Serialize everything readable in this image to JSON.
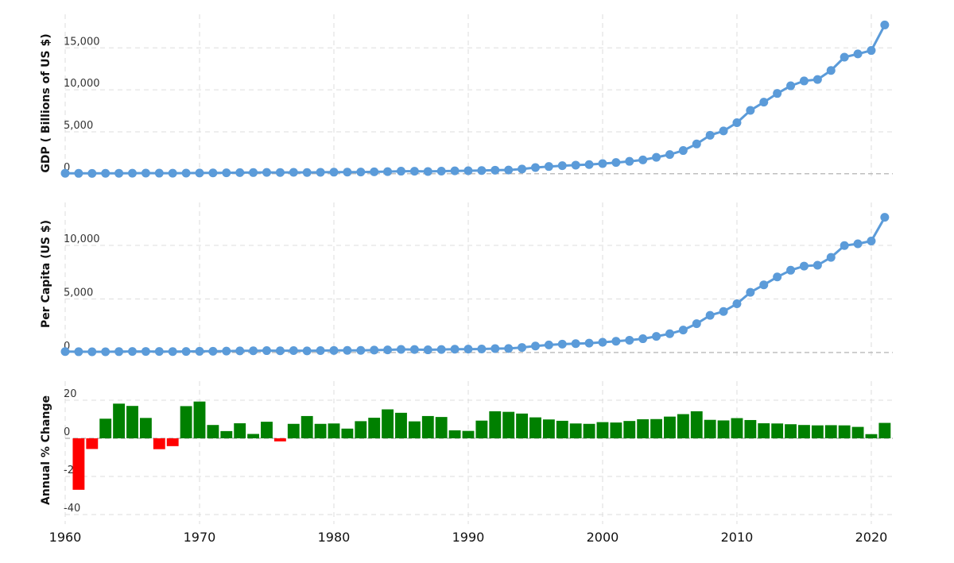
{
  "chart_data": [
    {
      "type": "line",
      "ylabel": "GDP ( Billions of US $)",
      "ylim": [
        -300,
        19000
      ],
      "yticks": [
        0,
        5000,
        10000,
        15000
      ],
      "ytick_labels": [
        "0",
        "5,000",
        "10,000",
        "15,000"
      ],
      "color": "#5b9bd9",
      "x": [
        1960,
        1961,
        1962,
        1963,
        1964,
        1965,
        1966,
        1967,
        1968,
        1969,
        1970,
        1971,
        1972,
        1973,
        1974,
        1975,
        1976,
        1977,
        1978,
        1979,
        1980,
        1981,
        1982,
        1983,
        1984,
        1985,
        1986,
        1987,
        1988,
        1989,
        1990,
        1991,
        1992,
        1993,
        1994,
        1995,
        1996,
        1997,
        1998,
        1999,
        2000,
        2001,
        2002,
        2003,
        2004,
        2005,
        2006,
        2007,
        2008,
        2009,
        2010,
        2011,
        2012,
        2013,
        2014,
        2015,
        2016,
        2017,
        2018,
        2019,
        2020,
        2021
      ],
      "values": [
        60,
        50,
        47,
        51,
        60,
        71,
        77,
        73,
        71,
        80,
        93,
        100,
        114,
        139,
        144,
        163,
        154,
        175,
        150,
        178,
        191,
        196,
        205,
        231,
        260,
        310,
        301,
        273,
        313,
        348,
        361,
        383,
        427,
        448,
        564,
        738,
        865,
        962,
        1030,
        1095,
        1210,
        1340,
        1480,
        1650,
        1960,
        2290,
        2770,
        3550,
        4590,
        5100,
        6090,
        7550,
        8530,
        9570,
        10480,
        11060,
        11230,
        12310,
        13890,
        14280,
        14690,
        17730
      ]
    },
    {
      "type": "line",
      "ylabel": "Per Capita (US $)",
      "ylim": [
        -300,
        14000
      ],
      "yticks": [
        0,
        5000,
        10000
      ],
      "ytick_labels": [
        "0",
        "5,000",
        "10,000"
      ],
      "color": "#5b9bd9",
      "x": [
        1960,
        1961,
        1962,
        1963,
        1964,
        1965,
        1966,
        1967,
        1968,
        1969,
        1970,
        1971,
        1972,
        1973,
        1974,
        1975,
        1976,
        1977,
        1978,
        1979,
        1980,
        1981,
        1982,
        1983,
        1984,
        1985,
        1986,
        1987,
        1988,
        1989,
        1990,
        1991,
        1992,
        1993,
        1994,
        1995,
        1996,
        1997,
        1998,
        1999,
        2000,
        2001,
        2002,
        2003,
        2004,
        2005,
        2006,
        2007,
        2008,
        2009,
        2010,
        2011,
        2012,
        2013,
        2014,
        2015,
        2016,
        2017,
        2018,
        2019,
        2020,
        2021
      ],
      "values": [
        90,
        76,
        70,
        74,
        85,
        98,
        102,
        96,
        91,
        100,
        113,
        119,
        132,
        157,
        160,
        178,
        165,
        185,
        156,
        183,
        195,
        197,
        203,
        225,
        250,
        294,
        281,
        252,
        284,
        311,
        318,
        333,
        366,
        377,
        473,
        610,
        709,
        782,
        829,
        873,
        959,
        1053,
        1149,
        1289,
        1509,
        1753,
        2099,
        2694,
        3468,
        3832,
        4550,
        5618,
        6317,
        7051,
        7679,
        8067,
        8148,
        8879,
        9977,
        10144,
        10409,
        12618
      ]
    },
    {
      "type": "bar",
      "ylabel": "Annual % Change",
      "ylim": [
        -45,
        30
      ],
      "yticks": [
        -40,
        -20,
        0,
        20
      ],
      "ytick_labels": [
        "-40",
        "-20",
        "0",
        "20"
      ],
      "positive_color": "#008000",
      "negative_color": "#ff0000",
      "x": [
        1961,
        1962,
        1963,
        1964,
        1965,
        1966,
        1967,
        1968,
        1969,
        1970,
        1971,
        1972,
        1973,
        1974,
        1975,
        1976,
        1977,
        1978,
        1979,
        1980,
        1981,
        1982,
        1983,
        1984,
        1985,
        1986,
        1987,
        1988,
        1989,
        1990,
        1991,
        1992,
        1993,
        1994,
        1995,
        1996,
        1997,
        1998,
        1999,
        2000,
        2001,
        2002,
        2003,
        2004,
        2005,
        2006,
        2007,
        2008,
        2009,
        2010,
        2011,
        2012,
        2013,
        2014,
        2015,
        2016,
        2017,
        2018,
        2019,
        2020,
        2021
      ],
      "values": [
        -27,
        -5.6,
        10.3,
        18.2,
        17,
        10.7,
        -5.7,
        -4.1,
        16.9,
        19.3,
        7,
        3.8,
        7.9,
        2.3,
        8.7,
        -1.6,
        7.6,
        11.7,
        7.6,
        7.8,
        5.1,
        9,
        10.8,
        15.2,
        13.4,
        8.9,
        11.7,
        11.2,
        4.2,
        3.9,
        9.3,
        14.2,
        13.9,
        13,
        11,
        9.9,
        9.2,
        7.8,
        7.6,
        8.5,
        8.3,
        9.1,
        10,
        10.1,
        11.4,
        12.7,
        14.2,
        9.7,
        9.4,
        10.6,
        9.6,
        7.9,
        7.8,
        7.4,
        7,
        6.8,
        6.9,
        6.8,
        6,
        2.2,
        8.1
      ]
    }
  ],
  "x_axis": {
    "ticks": [
      1960,
      1970,
      1980,
      1990,
      2000,
      2010,
      2020
    ],
    "tick_labels": [
      "1960",
      "1970",
      "1980",
      "1990",
      "2000",
      "2010",
      "2020"
    ],
    "range": [
      1960,
      2021.6
    ]
  }
}
